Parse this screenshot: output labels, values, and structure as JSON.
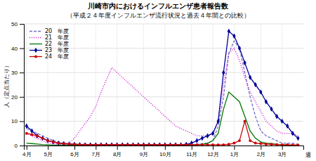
{
  "chart_data": {
    "type": "line",
    "title": "川崎市内におけるインフルエンザ患者報告数",
    "subtitle": "（平成２４年度インフルエンザ流行状況と過去４年間との比較）",
    "ylabel": "人（定点当たり）",
    "xlabel": "週",
    "x": [
      0,
      1,
      2,
      3,
      4,
      5,
      6,
      7,
      8,
      9,
      10,
      11,
      12,
      13,
      14,
      15,
      16,
      17,
      18,
      19,
      20,
      21,
      22,
      23,
      24,
      25,
      26,
      27,
      28,
      29,
      30,
      31,
      32,
      33,
      34,
      35,
      36,
      37,
      38,
      39,
      40,
      41,
      42,
      43,
      44,
      45,
      46,
      47,
      48,
      49,
      50,
      51
    ],
    "xlim": [
      -0.5,
      52
    ],
    "xticks": [
      {
        "value": 0,
        "label": "4月"
      },
      {
        "value": 4,
        "label": "5月"
      },
      {
        "value": 9,
        "label": "6月"
      },
      {
        "value": 13,
        "label": "7月"
      },
      {
        "value": 17,
        "label": "8月"
      },
      {
        "value": 22,
        "label": "9月"
      },
      {
        "value": 26,
        "label": "10月"
      },
      {
        "value": 31,
        "label": "11月"
      },
      {
        "value": 35,
        "label": "12月"
      },
      {
        "value": 39,
        "label": "1月"
      },
      {
        "value": 44,
        "label": "2月"
      },
      {
        "value": 48,
        "label": "3月"
      }
    ],
    "ylim": [
      0,
      50
    ],
    "yticks": [
      0,
      10,
      20,
      30,
      40,
      50
    ],
    "grid": true,
    "legend": "upper left",
    "series": [
      {
        "name": "20　年度",
        "color": "#7070cc",
        "line_style": "dashed",
        "marker": "none",
        "values": [
          7,
          6,
          5,
          4,
          3,
          2,
          1.5,
          1,
          0.8,
          0.6,
          0.5,
          0.5,
          0.4,
          0.3,
          0.3,
          0.3,
          0.3,
          0.3,
          0.3,
          0.3,
          0.3,
          0.3,
          0.3,
          0.3,
          0.3,
          0.3,
          0.3,
          0.3,
          0.3,
          0.3,
          0.3,
          0.3,
          0.5,
          0.8,
          1,
          2,
          8,
          20,
          38,
          43,
          40,
          30,
          20,
          12,
          6,
          4,
          3,
          2,
          1,
          1,
          1,
          0.5
        ]
      },
      {
        "name": "21　年度",
        "color": "#cc00cc",
        "line_style": "dotted",
        "marker": "none",
        "values": [
          5,
          4,
          3,
          2,
          1,
          0.8,
          0.5,
          0.3,
          1,
          3,
          6,
          9,
          12,
          16,
          22,
          27,
          32,
          30,
          28,
          26,
          24,
          22,
          20,
          18,
          16,
          14,
          12,
          10,
          8,
          7,
          6,
          5,
          4,
          4,
          4,
          5,
          10,
          25,
          38,
          40,
          35,
          28,
          22,
          18,
          14,
          10,
          8,
          6,
          5,
          5,
          5,
          4
        ]
      },
      {
        "name": "22　年度",
        "color": "#007700",
        "line_style": "solid",
        "marker": "none",
        "values": [
          1,
          0.8,
          0.6,
          0.4,
          0.3,
          0.2,
          0.2,
          0.2,
          0.2,
          0.2,
          0.2,
          0.2,
          0.2,
          0.2,
          0.2,
          0.2,
          0.2,
          0.2,
          0.2,
          0.2,
          0.2,
          0.2,
          0.2,
          0.2,
          0.2,
          0.2,
          0.2,
          0.2,
          0.2,
          0.2,
          0.2,
          0.2,
          0.3,
          0.5,
          1,
          2,
          5,
          15,
          22,
          20,
          18,
          12,
          6,
          3,
          1.5,
          1,
          0.8,
          0.5,
          0.3,
          0.2,
          0.2,
          0.2
        ]
      },
      {
        "name": "23　年度",
        "color": "#000099",
        "line_style": "solid",
        "marker": "diamond",
        "values": [
          8,
          6,
          4,
          3,
          2,
          1.5,
          1,
          0.8,
          0.6,
          0.5,
          0.4,
          0.3,
          0.3,
          0.3,
          0.3,
          0.3,
          0.3,
          0.3,
          0.3,
          0.3,
          0.3,
          0.3,
          0.3,
          0.3,
          0.3,
          0.3,
          0.3,
          0.3,
          0.3,
          0.3,
          0.5,
          1,
          2,
          3,
          4,
          5,
          10,
          30,
          47,
          45,
          40,
          34,
          28,
          25,
          22,
          18,
          15,
          12,
          10,
          8,
          5,
          3
        ]
      },
      {
        "name": "24　年度",
        "color": "#cc0000",
        "line_style": "solid",
        "marker": "circle",
        "values": [
          5,
          4.5,
          4,
          3,
          2,
          1.5,
          1,
          0.8,
          0.6,
          0.5,
          0.4,
          0.3,
          0.3,
          0.3,
          0.3,
          0.3,
          0.3,
          0.3,
          0.3,
          0.3,
          0.3,
          0.3,
          0.3,
          0.3,
          0.3,
          0.3,
          0.3,
          0.3,
          0.3,
          0.3,
          0.3,
          0.3,
          0.3,
          0.3,
          0.3,
          0.3,
          0.3,
          0.3,
          0.5,
          1,
          2,
          10,
          2,
          1,
          0.8,
          0.6,
          0.5,
          0.4,
          0.3,
          0.3,
          0.2,
          0.2
        ]
      }
    ]
  }
}
